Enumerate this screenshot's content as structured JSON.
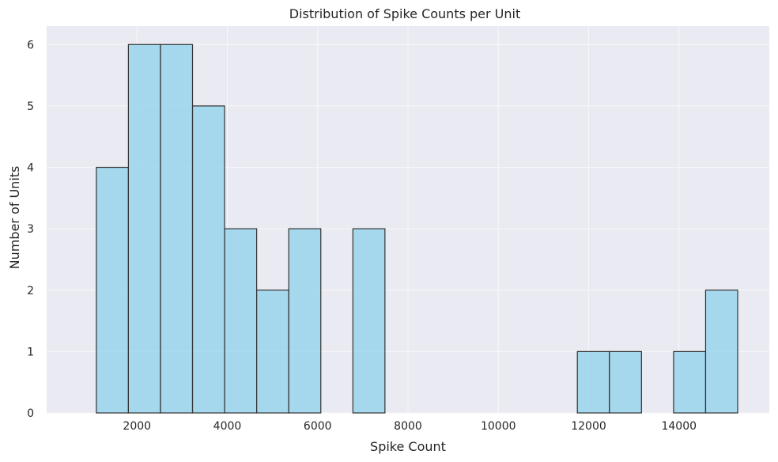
{
  "chart_data": {
    "type": "bar",
    "title": "Distribution of Spike Counts per Unit",
    "xlabel": "Spike Count",
    "ylabel": "Number of Units",
    "xlim": [
      0,
      16000
    ],
    "ylim": [
      0,
      6.3
    ],
    "xticks": [
      2000,
      4000,
      6000,
      8000,
      10000,
      12000,
      14000
    ],
    "yticks": [
      0,
      1,
      2,
      3,
      4,
      5,
      6
    ],
    "grid": true,
    "bin_edges": [
      1100,
      1810,
      2520,
      3230,
      3940,
      4650,
      5360,
      6070,
      6780,
      7490,
      8200,
      8910,
      9620,
      10330,
      11040,
      11750,
      12460,
      13170,
      13880,
      14590,
      15300
    ],
    "values": [
      4,
      6,
      6,
      5,
      3,
      2,
      3,
      0,
      3,
      0,
      0,
      0,
      0,
      0,
      0,
      1,
      1,
      0,
      1,
      2
    ],
    "colors": {
      "background": "#eaeaf2",
      "bar_fill": "#87ceeb",
      "bar_edge": "#333333",
      "grid": "#f7f7fa"
    }
  }
}
